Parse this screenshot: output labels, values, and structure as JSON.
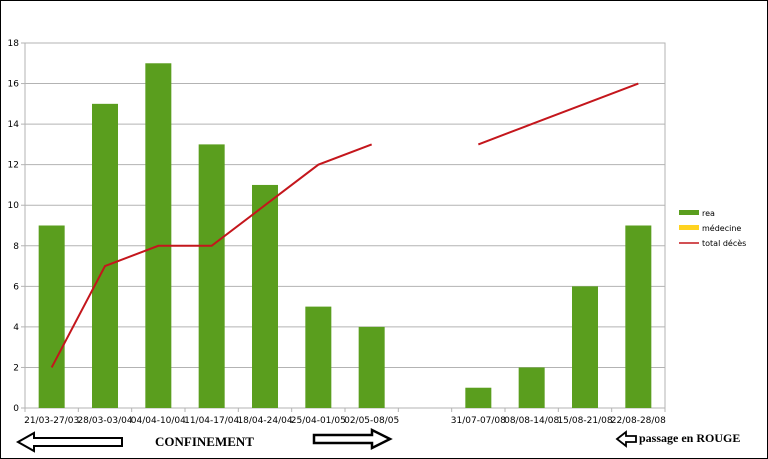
{
  "chart_data": {
    "type": "bar",
    "categories": [
      "21/03-27/03",
      "28/03-03/04",
      "04/04-10/04",
      "11/04-17/04",
      "18/04-24/04",
      "25/04-01/05",
      "02/05-08/05",
      "",
      "31/07-07/08",
      "08/08-14/08",
      "15/08-21/08",
      "22/08-28/08"
    ],
    "series": [
      {
        "name": "rea",
        "type": "bar",
        "color": "#5a9e1e",
        "values": [
          9,
          15,
          17,
          13,
          11,
          5,
          4,
          null,
          1,
          2,
          6,
          9
        ]
      },
      {
        "name": "médecine",
        "type": "bar",
        "color": "#ffd320",
        "values": [
          null,
          null,
          null,
          null,
          null,
          null,
          null,
          null,
          null,
          null,
          null,
          null
        ]
      },
      {
        "name": "total décès",
        "type": "line",
        "color": "#c4161c",
        "values": [
          2,
          7,
          8,
          8,
          10,
          12,
          13,
          null,
          13,
          14,
          15,
          16
        ]
      }
    ],
    "ylim": [
      0,
      18
    ],
    "yticks": [
      0,
      2,
      4,
      6,
      8,
      10,
      12,
      14,
      16,
      18
    ],
    "grid": true,
    "legend": "right"
  },
  "annotations": {
    "confinement": "CONFINEMENT",
    "passage": "passage en ROUGE"
  }
}
